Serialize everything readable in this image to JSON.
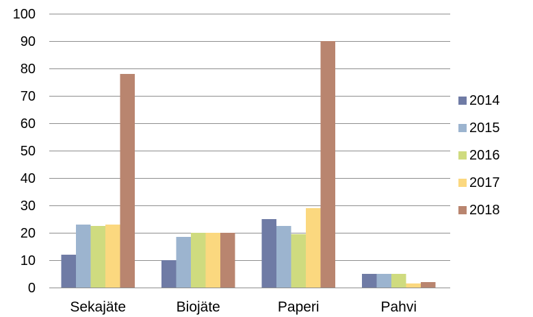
{
  "chart_data": {
    "type": "bar",
    "title": "",
    "xlabel": "",
    "ylabel": "",
    "categories": [
      "Sekajäte",
      "Biojäte",
      "Paperi",
      "Pahvi"
    ],
    "ylim": [
      0,
      100
    ],
    "yticks": [
      0,
      10,
      20,
      30,
      40,
      50,
      60,
      70,
      80,
      90,
      100
    ],
    "grid": true,
    "legend_position": "right",
    "series": [
      {
        "name": "2014",
        "color": "#6F7BA5",
        "values": [
          12,
          10,
          25,
          5
        ]
      },
      {
        "name": "2015",
        "color": "#9CB4CF",
        "values": [
          23,
          18.5,
          22.5,
          5
        ]
      },
      {
        "name": "2016",
        "color": "#CFDB7F",
        "values": [
          22.5,
          20,
          19.5,
          5
        ]
      },
      {
        "name": "2017",
        "color": "#FBD87F",
        "values": [
          23,
          20,
          29,
          1.5
        ]
      },
      {
        "name": "2018",
        "color": "#B9856F",
        "values": [
          78,
          20,
          90,
          2
        ]
      }
    ]
  }
}
